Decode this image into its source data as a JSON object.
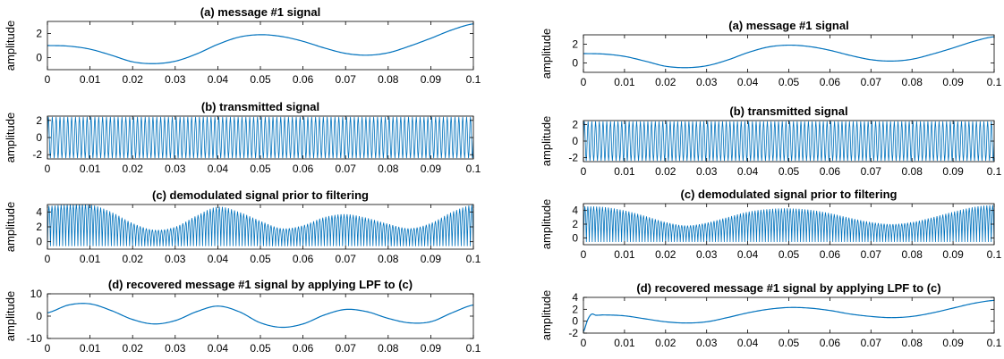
{
  "chart_data": [
    {
      "type": "line",
      "title": "(a) message #1 signal",
      "ylabel": "amplitude",
      "xlabel": "",
      "xlim": [
        0,
        0.1
      ],
      "ylim": [
        -1,
        3
      ],
      "yticks": [
        "0",
        "2"
      ],
      "xticks": [
        "0",
        "0.01",
        "0.02",
        "0.03",
        "0.04",
        "0.05",
        "0.06",
        "0.07",
        "0.08",
        "0.09",
        "0.1"
      ],
      "series": [
        {
          "x": [
            0,
            0.005,
            0.01,
            0.015,
            0.02,
            0.025,
            0.03,
            0.035,
            0.04,
            0.045,
            0.05,
            0.055,
            0.06,
            0.065,
            0.07,
            0.075,
            0.08,
            0.085,
            0.09,
            0.095,
            0.1
          ],
          "values": [
            1.0,
            0.95,
            0.7,
            0.2,
            -0.35,
            -0.5,
            -0.3,
            0.3,
            1.1,
            1.7,
            1.9,
            1.75,
            1.35,
            0.8,
            0.35,
            0.2,
            0.4,
            0.95,
            1.6,
            2.3,
            2.8
          ]
        }
      ]
    },
    {
      "type": "line",
      "title": "(b) transmitted signal",
      "ylabel": "amplitude",
      "xlabel": "",
      "xlim": [
        0,
        0.1
      ],
      "ylim": [
        -2.5,
        2.5
      ],
      "yticks": [
        "-2",
        "0",
        "2"
      ],
      "xticks": [
        "0",
        "0.01",
        "0.02",
        "0.03",
        "0.04",
        "0.05",
        "0.06",
        "0.07",
        "0.08",
        "0.09",
        "0.1"
      ],
      "series": [
        {
          "description": "carrier oscillating between -2.4 and 2.4, about 110 cycles",
          "amplitude": 2.4,
          "cycles": 110
        }
      ]
    },
    {
      "type": "line",
      "title": "(c) demodulated signal prior to filtering",
      "ylabel": "amplitude",
      "xlabel": "",
      "xlim": [
        0,
        0.1
      ],
      "ylim": [
        -1,
        5
      ],
      "yticks": [
        "0",
        "2",
        "4"
      ],
      "xticks": [
        "0",
        "0.01",
        "0.02",
        "0.03",
        "0.04",
        "0.05",
        "0.06",
        "0.07",
        "0.08",
        "0.09",
        "0.1"
      ],
      "series": [
        {
          "description": "dense oscillation; upper envelope",
          "x": [
            0,
            0.005,
            0.01,
            0.015,
            0.02,
            0.025,
            0.03,
            0.035,
            0.04,
            0.045,
            0.05,
            0.055,
            0.06,
            0.065,
            0.07,
            0.075,
            0.08,
            0.085,
            0.09,
            0.095,
            0.1
          ],
          "values": [
            4.8,
            5.0,
            5.0,
            4.0,
            2.5,
            1.6,
            2.0,
            3.5,
            4.7,
            4.0,
            2.8,
            1.8,
            2.2,
            3.3,
            3.7,
            3.2,
            2.4,
            1.8,
            2.5,
            4.0,
            5.0
          ]
        }
      ]
    },
    {
      "type": "line",
      "title": "(d) recovered message #1 signal by applying LPF to (c)",
      "ylabel": "amplitude",
      "xlabel": "",
      "xlim": [
        0,
        0.1
      ],
      "ylim": [
        -10,
        10
      ],
      "yticks": [
        "-10",
        "0",
        "10"
      ],
      "xticks": [
        "0",
        "0.01",
        "0.02",
        "0.03",
        "0.04",
        "0.05",
        "0.06",
        "0.07",
        "0.08",
        "0.09",
        "0.1"
      ],
      "series": [
        {
          "x": [
            0,
            0.005,
            0.01,
            0.015,
            0.02,
            0.025,
            0.03,
            0.035,
            0.04,
            0.045,
            0.05,
            0.055,
            0.06,
            0.065,
            0.07,
            0.075,
            0.08,
            0.085,
            0.09,
            0.095,
            0.1
          ],
          "values": [
            1.5,
            5.0,
            5.5,
            2.5,
            -1.5,
            -3.5,
            -2.0,
            2.0,
            4.5,
            2.0,
            -3.0,
            -5.0,
            -3.5,
            0.5,
            3.0,
            2.0,
            -1.0,
            -3.0,
            -2.5,
            1.5,
            5.0
          ]
        }
      ]
    },
    {
      "type": "line",
      "title": "(a) message #1 signal",
      "ylabel": "amplitude",
      "xlabel": "",
      "xlim": [
        0,
        0.1
      ],
      "ylim": [
        -1,
        3
      ],
      "yticks": [
        "0",
        "2"
      ],
      "xticks": [
        "0",
        "0.01",
        "0.02",
        "0.03",
        "0.04",
        "0.05",
        "0.06",
        "0.07",
        "0.08",
        "0.09",
        "0.1"
      ],
      "series": [
        {
          "x": [
            0,
            0.005,
            0.01,
            0.015,
            0.02,
            0.025,
            0.03,
            0.035,
            0.04,
            0.045,
            0.05,
            0.055,
            0.06,
            0.065,
            0.07,
            0.075,
            0.08,
            0.085,
            0.09,
            0.095,
            0.1
          ],
          "values": [
            1.0,
            0.95,
            0.7,
            0.2,
            -0.35,
            -0.5,
            -0.3,
            0.3,
            1.1,
            1.7,
            1.9,
            1.75,
            1.35,
            0.8,
            0.35,
            0.2,
            0.4,
            0.95,
            1.6,
            2.3,
            2.8
          ]
        }
      ]
    },
    {
      "type": "line",
      "title": "(b) transmitted signal",
      "ylabel": "amplitude",
      "xlabel": "",
      "xlim": [
        0,
        0.1
      ],
      "ylim": [
        -2.5,
        2.5
      ],
      "yticks": [
        "-2",
        "0",
        "2"
      ],
      "xticks": [
        "0",
        "0.01",
        "0.02",
        "0.03",
        "0.04",
        "0.05",
        "0.06",
        "0.07",
        "0.08",
        "0.09",
        "0.1"
      ],
      "series": [
        {
          "description": "carrier oscillating between -2.4 and 2.4, about 110 cycles",
          "amplitude": 2.4,
          "cycles": 110
        }
      ]
    },
    {
      "type": "line",
      "title": "(c) demodulated signal prior to filtering",
      "ylabel": "amplitude",
      "xlabel": "",
      "xlim": [
        0,
        0.1
      ],
      "ylim": [
        -1,
        5
      ],
      "yticks": [
        "0",
        "2",
        "4"
      ],
      "xticks": [
        "0",
        "0.01",
        "0.02",
        "0.03",
        "0.04",
        "0.05",
        "0.06",
        "0.07",
        "0.08",
        "0.09",
        "0.1"
      ],
      "series": [
        {
          "description": "dense oscillation; upper envelope",
          "x": [
            0,
            0.005,
            0.01,
            0.015,
            0.02,
            0.025,
            0.03,
            0.035,
            0.04,
            0.045,
            0.05,
            0.055,
            0.06,
            0.065,
            0.07,
            0.075,
            0.08,
            0.085,
            0.09,
            0.095,
            0.1
          ],
          "values": [
            4.6,
            4.5,
            4.0,
            3.2,
            2.3,
            1.8,
            2.2,
            3.0,
            3.8,
            4.2,
            4.3,
            4.1,
            3.6,
            2.9,
            2.3,
            2.0,
            2.3,
            3.0,
            3.8,
            4.5,
            4.8
          ]
        }
      ]
    },
    {
      "type": "line",
      "title": "(d) recovered message #1 signal by applying LPF to (c)",
      "ylabel": "amplitude",
      "xlabel": "",
      "xlim": [
        0,
        0.1
      ],
      "ylim": [
        -2,
        4
      ],
      "yticks": [
        "-2",
        "0",
        "2",
        "4"
      ],
      "xticks": [
        "0",
        "0.01",
        "0.02",
        "0.03",
        "0.04",
        "0.05",
        "0.06",
        "0.07",
        "0.08",
        "0.09",
        "0.1"
      ],
      "series": [
        {
          "x": [
            0,
            0.001,
            0.002,
            0.003,
            0.005,
            0.01,
            0.015,
            0.02,
            0.025,
            0.03,
            0.035,
            0.04,
            0.045,
            0.05,
            0.055,
            0.06,
            0.065,
            0.07,
            0.075,
            0.08,
            0.085,
            0.09,
            0.095,
            0.1
          ],
          "values": [
            -1.8,
            0.2,
            1.2,
            1.0,
            1.05,
            0.9,
            0.4,
            -0.1,
            -0.3,
            -0.1,
            0.6,
            1.4,
            2.0,
            2.3,
            2.2,
            1.8,
            1.2,
            0.8,
            0.6,
            0.8,
            1.4,
            2.2,
            3.0,
            3.5
          ]
        }
      ]
    }
  ],
  "colors": {
    "line": "#0072BD",
    "axes": "#000000"
  }
}
